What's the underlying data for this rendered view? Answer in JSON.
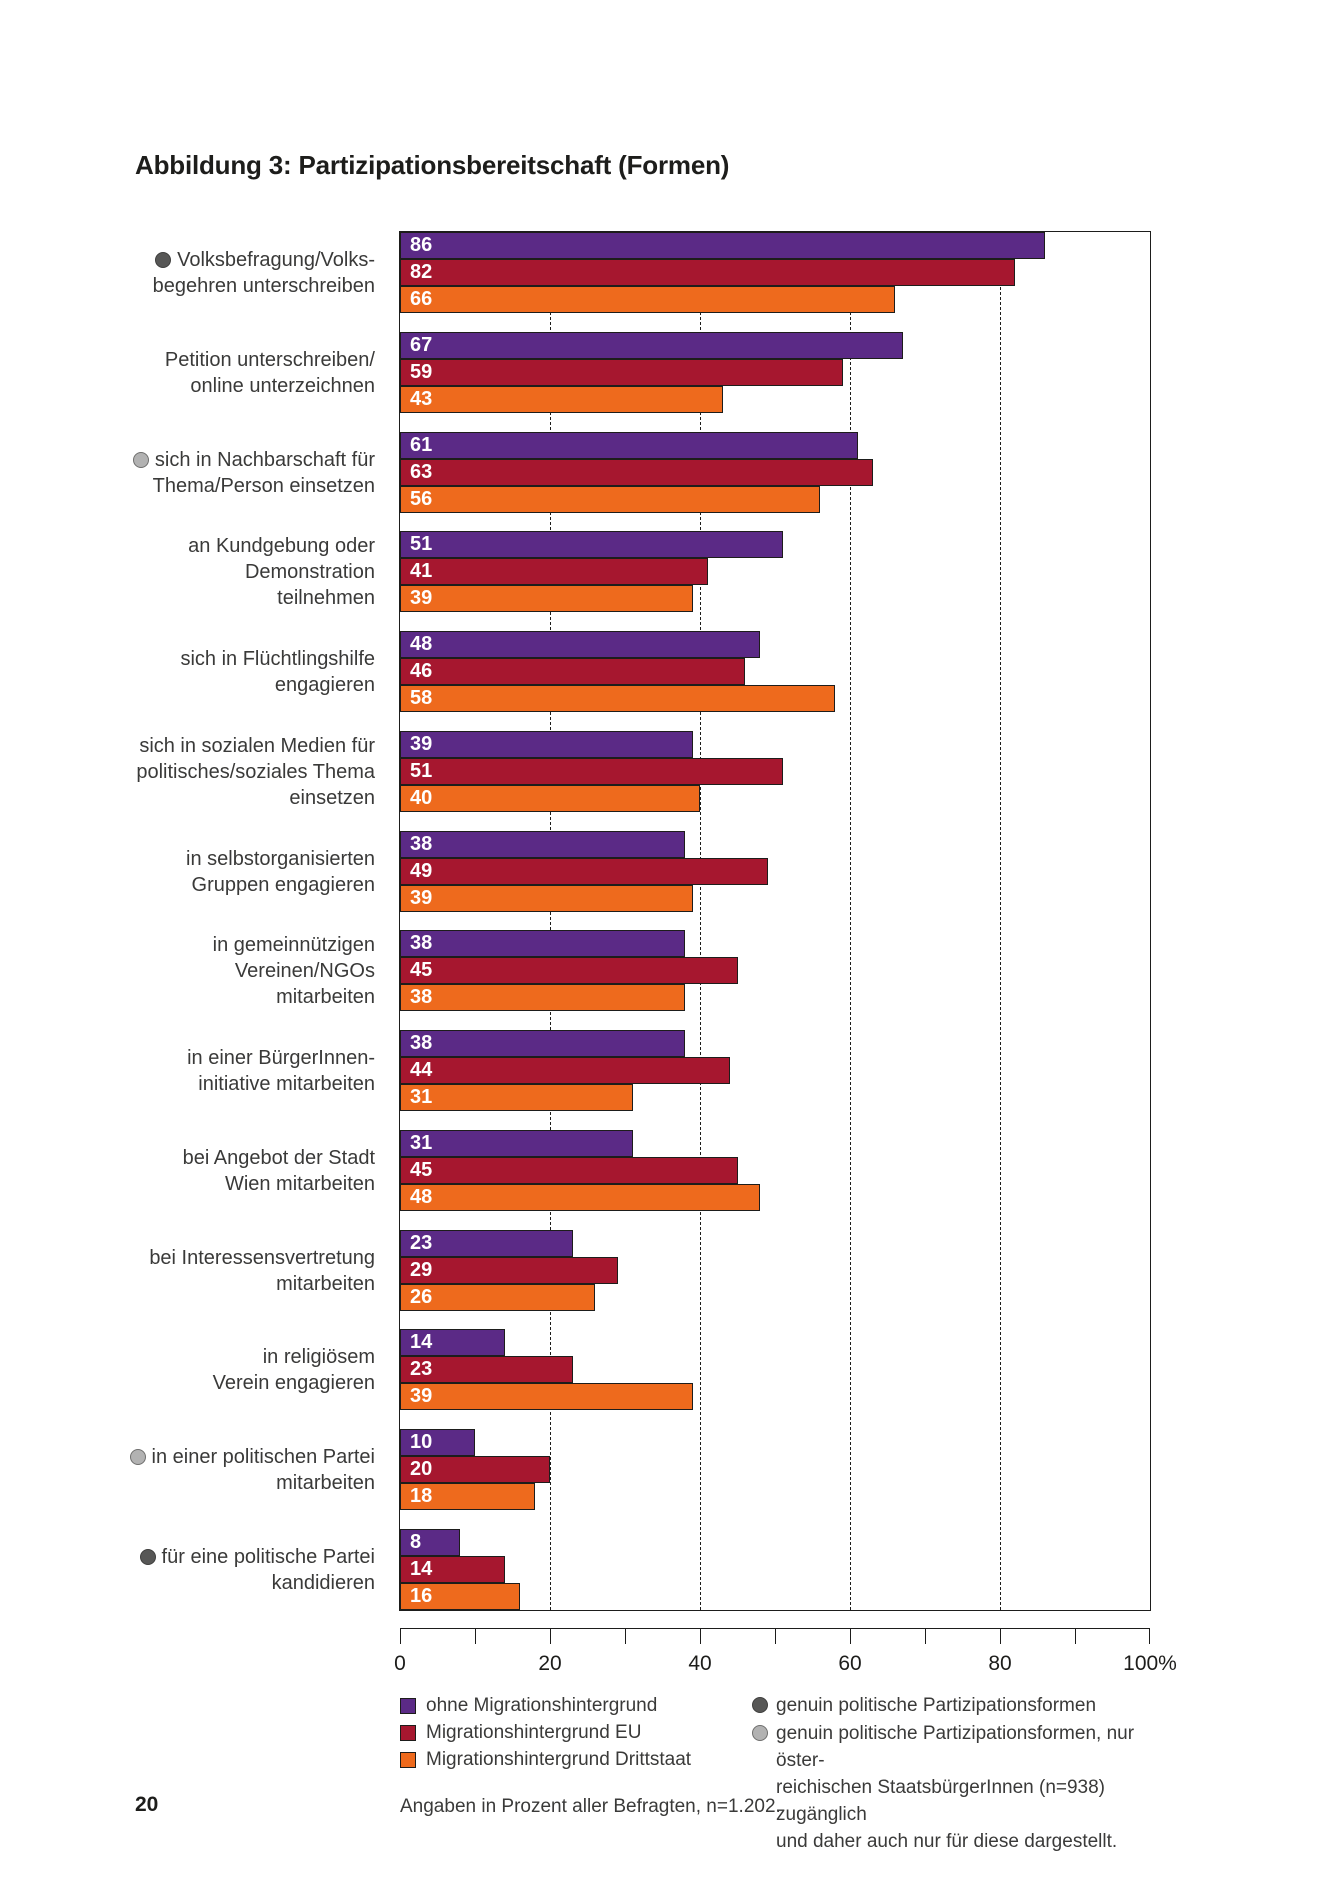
{
  "title": "Abbildung 3: Partizipationsbereitschaft (Formen)",
  "caption": "Angaben in Prozent aller Befragten, n=1.202.",
  "page_number": "20",
  "colors": {
    "series_purple": "#5b2a86",
    "series_red": "#a6172f",
    "series_orange": "#ee6a1d",
    "bar_outline": "#1d1d1b",
    "marker_dark": "#575756",
    "marker_light": "#b2b2b2",
    "text": "#3a3a39"
  },
  "chart_data": {
    "type": "bar",
    "orientation": "horizontal",
    "title": "Abbildung 3: Partizipationsbereitschaft (Formen)",
    "unit": "Prozent",
    "xlim": [
      0,
      100
    ],
    "tick_step": 10,
    "x_tick_labels": [
      {
        "value": 0,
        "label": "0"
      },
      {
        "value": 20,
        "label": "20"
      },
      {
        "value": 40,
        "label": "40"
      },
      {
        "value": 60,
        "label": "60"
      },
      {
        "value": 80,
        "label": "80"
      },
      {
        "value": 100,
        "label": "100%"
      }
    ],
    "gridlines_at": [
      20,
      40,
      60,
      80
    ],
    "grid": "dashed-vertical",
    "legend_position": "bottom",
    "categories": [
      {
        "lines": [
          "Volksbefragung/Volks-",
          "begehren unterschreiben"
        ],
        "marker": "dark"
      },
      {
        "lines": [
          "Petition unterschreiben/",
          "online unterzeichnen"
        ],
        "marker": null
      },
      {
        "lines": [
          "sich in Nachbarschaft für",
          "Thema/Person einsetzen"
        ],
        "marker": "light"
      },
      {
        "lines": [
          "an Kundgebung oder",
          "Demonstration",
          "teilnehmen"
        ],
        "marker": null
      },
      {
        "lines": [
          "sich in Flüchtlingshilfe",
          "engagieren"
        ],
        "marker": null
      },
      {
        "lines": [
          "sich in sozialen Medien für",
          "politisches/soziales Thema",
          "einsetzen"
        ],
        "marker": null
      },
      {
        "lines": [
          "in selbstorganisierten",
          "Gruppen engagieren"
        ],
        "marker": null
      },
      {
        "lines": [
          "in gemeinnützigen",
          "Vereinen/NGOs",
          "mitarbeiten"
        ],
        "marker": null
      },
      {
        "lines": [
          "in einer BürgerInnen-",
          "initiative mitarbeiten"
        ],
        "marker": null
      },
      {
        "lines": [
          "bei Angebot der Stadt",
          "Wien mitarbeiten"
        ],
        "marker": null
      },
      {
        "lines": [
          "bei Interessensvertretung",
          "mitarbeiten"
        ],
        "marker": null
      },
      {
        "lines": [
          "in religiösem",
          "Verein engagieren"
        ],
        "marker": null
      },
      {
        "lines": [
          "in einer politischen Partei",
          "mitarbeiten"
        ],
        "marker": "light"
      },
      {
        "lines": [
          "für eine politische Partei",
          "kandidieren"
        ],
        "marker": "dark"
      }
    ],
    "series": [
      {
        "name": "ohne Migrationshintergrund",
        "color": "#5b2a86",
        "values": [
          86,
          67,
          61,
          51,
          48,
          39,
          38,
          38,
          38,
          31,
          23,
          14,
          10,
          8
        ]
      },
      {
        "name": "Migrationshintergrund EU",
        "color": "#a6172f",
        "values": [
          82,
          59,
          63,
          41,
          46,
          51,
          49,
          45,
          44,
          45,
          29,
          23,
          20,
          14
        ]
      },
      {
        "name": "Migrationshintergrund Drittstaat",
        "color": "#ee6a1d",
        "values": [
          66,
          43,
          56,
          39,
          58,
          40,
          39,
          38,
          31,
          48,
          26,
          39,
          18,
          16
        ]
      }
    ]
  },
  "legend": {
    "series": [
      {
        "label": "ohne Migrationshintergrund",
        "color": "#5b2a86"
      },
      {
        "label": "Migrationshintergrund EU",
        "color": "#a6172f"
      },
      {
        "label": "Migrationshintergrund Drittstaat",
        "color": "#ee6a1d"
      }
    ],
    "markers": [
      {
        "type": "dark",
        "lines": [
          "genuin politische Partizipationsformen"
        ]
      },
      {
        "type": "light",
        "lines": [
          "genuin politische Partizipationsformen, nur öster-",
          "reichischen StaatsbürgerInnen (n=938) zugänglich",
          "und daher auch nur für diese dargestellt."
        ]
      }
    ]
  }
}
